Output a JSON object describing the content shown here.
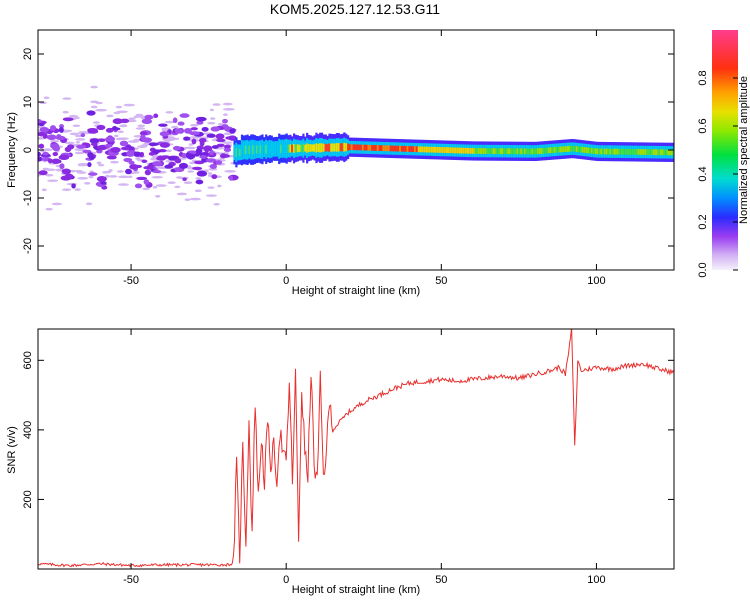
{
  "title": "KOM5.2025.127.12.53.G11",
  "chart_data": [
    {
      "type": "heatmap",
      "xlabel": "Height of straight line (km)",
      "ylabel": "Frequency (Hz)",
      "xlim": [
        -80,
        125
      ],
      "ylim": [
        -25,
        25
      ],
      "xticks": [
        -50,
        0,
        50,
        100
      ],
      "yticks": [
        -20,
        -10,
        0,
        10,
        20
      ],
      "colorbar": {
        "label": "Normalized spectral amplitude",
        "range": [
          0,
          1
        ],
        "ticks": [
          "0.0",
          "0.2",
          "0.4",
          "0.6",
          "0.8"
        ],
        "colormap": [
          "#e8e0f8",
          "#c9a8f0",
          "#8a2be2",
          "#3020ff",
          "#00c8ff",
          "#00e060",
          "#c8e800",
          "#ffa000",
          "#ff2020",
          "#ff3c8c"
        ]
      },
      "description_points": {
        "scatter_region_x": [
          -80,
          -17
        ],
        "scatter_freq_range": [
          -10,
          10
        ],
        "band_region_x": [
          -17,
          125
        ],
        "band_center_freq": [
          [
            -15,
            0
          ],
          [
            0,
            0.3
          ],
          [
            20,
            0.6
          ],
          [
            40,
            0.2
          ],
          [
            60,
            -0.2
          ],
          [
            80,
            -0.3
          ],
          [
            92,
            0.3
          ],
          [
            100,
            -0.3
          ],
          [
            125,
            -0.5
          ]
        ],
        "peak_amplitude_x": [
          20,
          40
        ]
      }
    },
    {
      "type": "line",
      "xlabel": "Height of straight line (km)",
      "ylabel": "SNR (v/v)",
      "xlim": [
        -80,
        125
      ],
      "ylim": [
        0,
        690
      ],
      "xticks": [
        -50,
        0,
        50,
        100
      ],
      "yticks": [
        200,
        400,
        600
      ],
      "color": "#e8302e",
      "x": [
        -80,
        -70,
        -60,
        -50,
        -40,
        -30,
        -20,
        -17,
        -16,
        -15,
        -14,
        -13,
        -12,
        -11,
        -10,
        -9,
        -8,
        -7,
        -6,
        -5,
        -4,
        -3,
        -2,
        -1,
        0,
        1,
        2,
        3,
        4,
        5,
        6,
        7,
        8,
        9,
        10,
        11,
        12,
        13,
        14,
        15,
        17,
        20,
        25,
        30,
        35,
        40,
        45,
        50,
        55,
        60,
        65,
        70,
        75,
        80,
        85,
        88,
        90,
        91,
        92,
        93,
        94,
        95,
        100,
        105,
        110,
        115,
        120,
        125
      ],
      "y": [
        15,
        10,
        15,
        10,
        12,
        12,
        12,
        15,
        300,
        40,
        350,
        80,
        420,
        100,
        490,
        200,
        380,
        250,
        420,
        300,
        350,
        260,
        400,
        330,
        300,
        540,
        250,
        560,
        80,
        520,
        340,
        260,
        580,
        300,
        250,
        540,
        260,
        350,
        480,
        400,
        420,
        450,
        480,
        500,
        520,
        535,
        540,
        545,
        540,
        545,
        550,
        555,
        548,
        560,
        570,
        580,
        560,
        620,
        690,
        350,
        600,
        570,
        580,
        575,
        585,
        590,
        575,
        565
      ]
    }
  ]
}
